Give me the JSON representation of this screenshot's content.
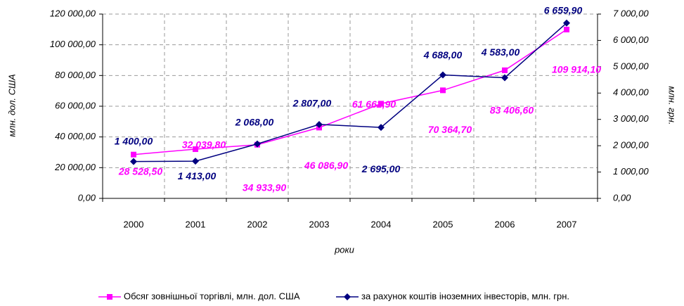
{
  "chart_data": {
    "type": "line",
    "categories": [
      "2000",
      "2001",
      "2002",
      "2003",
      "2004",
      "2005",
      "2006",
      "2007"
    ],
    "x_label": "роки",
    "y_label": "млн. дол. США",
    "y2_label": "млн. грн.",
    "series": [
      {
        "name": "Обсяг зовнішньої торгівлі, млн. дол. США",
        "color": "#ff00ff",
        "marker": "square",
        "values": [
          28528.5,
          32039.8,
          34933.9,
          46086.9,
          61662.9,
          70364.7,
          83406.6,
          109914.1
        ],
        "value_labels": [
          "28 528,50",
          "32 039,80",
          "34 933,90",
          "46 086,90",
          "61 662,90",
          "70 364,70",
          "83 406,60",
          "109 914,10"
        ]
      },
      {
        "name": "за рахунок коштів іноземних інвесторів, млн. грн.",
        "color": "#000080",
        "marker": "diamond",
        "axis": "y2",
        "values": [
          1400,
          1413,
          2068,
          2807,
          2695,
          4688,
          4583,
          6659.9
        ],
        "value_labels": [
          "1 400,00",
          "1 413,00",
          "2 068,00",
          "2 807,00",
          "2 695,00",
          "4 688,00",
          "4 583,00",
          "6 659,90"
        ]
      }
    ],
    "ylim": [
      0,
      120000
    ],
    "yticks": [
      {
        "value": 0,
        "label": "0,00"
      },
      {
        "value": 20000,
        "label": "20 000,00"
      },
      {
        "value": 40000,
        "label": "40 000,00"
      },
      {
        "value": 60000,
        "label": "60 000,00"
      },
      {
        "value": 80000,
        "label": "80 000,00"
      },
      {
        "value": 100000,
        "label": "100 000,00"
      },
      {
        "value": 120000,
        "label": "120 000,00"
      }
    ],
    "y2lim": [
      0,
      7000
    ],
    "y2ticks": [
      {
        "value": 0,
        "label": "0,00"
      },
      {
        "value": 1000,
        "label": "1 000,00"
      },
      {
        "value": 2000,
        "label": "2 000,00"
      },
      {
        "value": 3000,
        "label": "3 000,00"
      },
      {
        "value": 4000,
        "label": "4 000,00"
      },
      {
        "value": 5000,
        "label": "5 000,00"
      },
      {
        "value": 6000,
        "label": "6 000,00"
      },
      {
        "value": 7000,
        "label": "7 000,00"
      }
    ],
    "grid": true,
    "legend": "bottom"
  }
}
